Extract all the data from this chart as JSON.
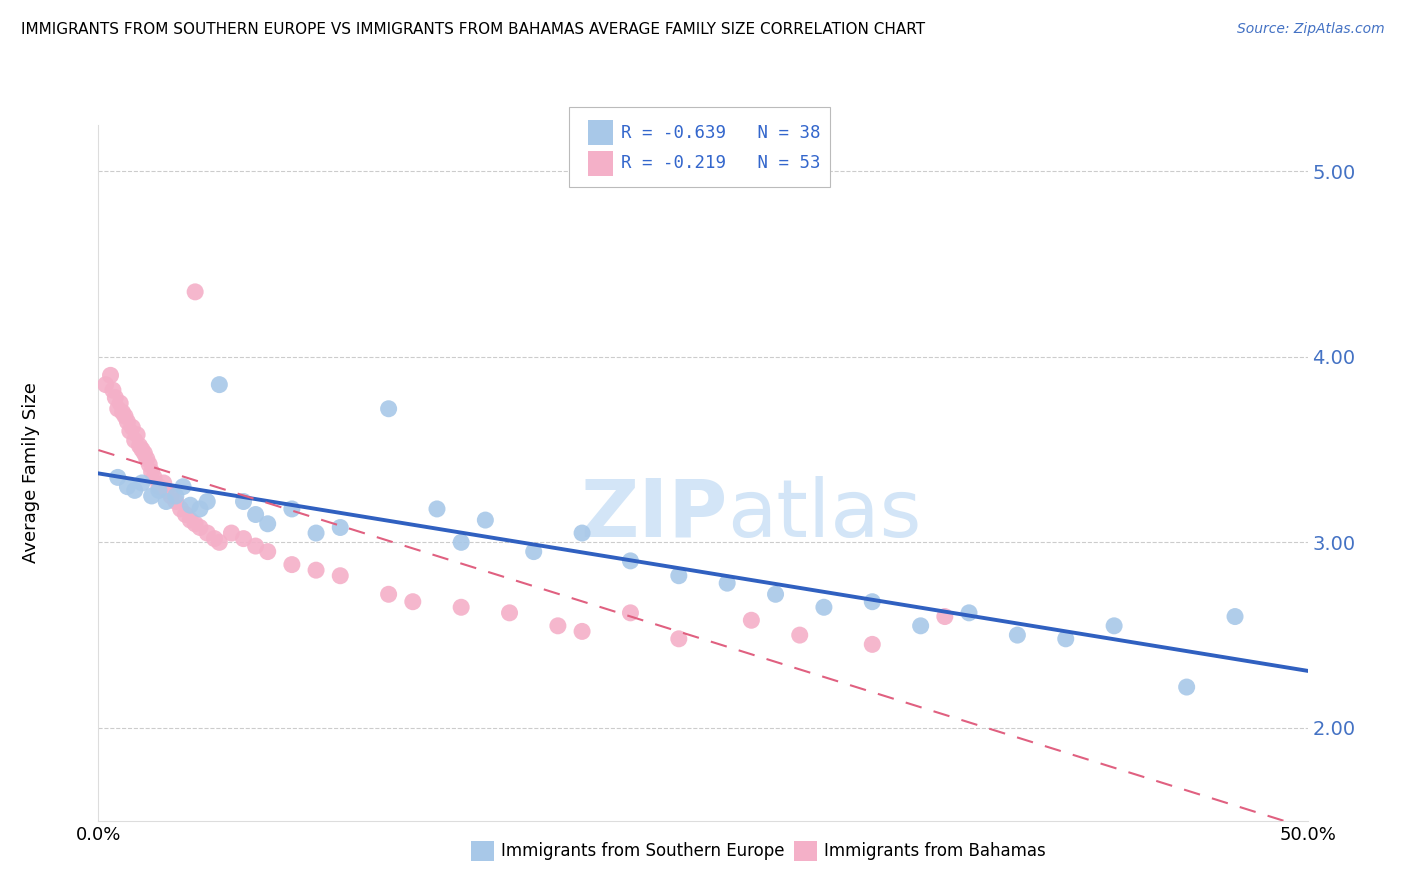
{
  "title": "IMMIGRANTS FROM SOUTHERN EUROPE VS IMMIGRANTS FROM BAHAMAS AVERAGE FAMILY SIZE CORRELATION CHART",
  "source": "Source: ZipAtlas.com",
  "ylabel": "Average Family Size",
  "xmin": 0.0,
  "xmax": 0.5,
  "ymin": 1.5,
  "ymax": 5.25,
  "yticks": [
    2.0,
    3.0,
    4.0,
    5.0
  ],
  "xticks": [
    0.0,
    0.1,
    0.2,
    0.3,
    0.4,
    0.5
  ],
  "x_tick_labels_display": [
    "0.0%",
    "",
    "",
    "",
    "",
    "50.0%"
  ],
  "series1_label": "Immigrants from Southern Europe",
  "series2_label": "Immigrants from Bahamas",
  "series1_color": "#a8c8e8",
  "series2_color": "#f4b0c8",
  "series1_R": -0.639,
  "series1_N": 38,
  "series2_R": -0.219,
  "series2_N": 53,
  "series1_line_color": "#3060c0",
  "series2_line_color": "#e06080",
  "watermark_zip": "ZIP",
  "watermark_atlas": "atlas",
  "series1_x": [
    0.008,
    0.012,
    0.015,
    0.018,
    0.022,
    0.025,
    0.028,
    0.032,
    0.035,
    0.038,
    0.042,
    0.045,
    0.05,
    0.06,
    0.065,
    0.07,
    0.08,
    0.09,
    0.1,
    0.12,
    0.14,
    0.15,
    0.16,
    0.18,
    0.2,
    0.22,
    0.24,
    0.26,
    0.28,
    0.3,
    0.32,
    0.34,
    0.36,
    0.38,
    0.4,
    0.42,
    0.45,
    0.47
  ],
  "series1_y": [
    3.35,
    3.3,
    3.28,
    3.32,
    3.25,
    3.28,
    3.22,
    3.25,
    3.3,
    3.2,
    3.18,
    3.22,
    3.85,
    3.22,
    3.15,
    3.1,
    3.18,
    3.05,
    3.08,
    3.72,
    3.18,
    3.0,
    3.12,
    2.95,
    3.05,
    2.9,
    2.82,
    2.78,
    2.72,
    2.65,
    2.68,
    2.55,
    2.62,
    2.5,
    2.48,
    2.55,
    2.22,
    2.6
  ],
  "series2_x": [
    0.003,
    0.005,
    0.006,
    0.007,
    0.008,
    0.009,
    0.01,
    0.011,
    0.012,
    0.013,
    0.014,
    0.015,
    0.016,
    0.017,
    0.018,
    0.019,
    0.02,
    0.021,
    0.022,
    0.023,
    0.025,
    0.027,
    0.028,
    0.03,
    0.032,
    0.034,
    0.036,
    0.038,
    0.04,
    0.042,
    0.045,
    0.048,
    0.05,
    0.055,
    0.06,
    0.065,
    0.07,
    0.08,
    0.09,
    0.1,
    0.12,
    0.13,
    0.15,
    0.17,
    0.19,
    0.2,
    0.22,
    0.24,
    0.27,
    0.29,
    0.32,
    0.35,
    0.04
  ],
  "series2_y": [
    3.85,
    3.9,
    3.82,
    3.78,
    3.72,
    3.75,
    3.7,
    3.68,
    3.65,
    3.6,
    3.62,
    3.55,
    3.58,
    3.52,
    3.5,
    3.48,
    3.45,
    3.42,
    3.38,
    3.35,
    3.3,
    3.32,
    3.28,
    3.25,
    3.22,
    3.18,
    3.15,
    3.12,
    3.1,
    3.08,
    3.05,
    3.02,
    3.0,
    3.05,
    3.02,
    2.98,
    2.95,
    2.88,
    2.85,
    2.82,
    2.72,
    2.68,
    2.65,
    2.62,
    2.55,
    2.52,
    2.62,
    2.48,
    2.58,
    2.5,
    2.45,
    2.6,
    4.35
  ]
}
